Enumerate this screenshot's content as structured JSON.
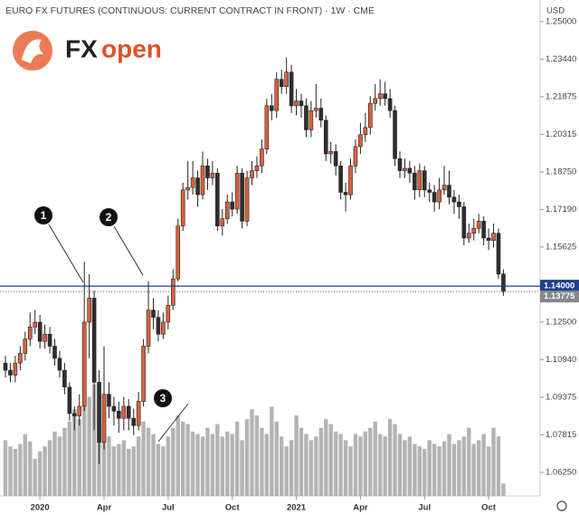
{
  "chart_data": {
    "type": "candlestick",
    "title": "EURO FX FUTURES (CONTINUOUS: CURRENT CONTRACT IN FRONT) · 1W · CME",
    "currency": "USD",
    "logo": {
      "fx": "FX",
      "open": "open"
    },
    "candles": {
      "up_color": "#d9623a",
      "down_color": "#2e2e2e",
      "open": [
        1.108,
        1.105,
        1.103,
        1.108,
        1.112,
        1.118,
        1.123,
        1.125,
        1.117,
        1.12,
        1.115,
        1.11,
        1.105,
        1.098,
        1.087,
        1.086,
        1.09,
        1.125,
        1.135,
        1.1,
        1.075,
        1.095,
        1.09,
        1.088,
        1.085,
        1.09,
        1.085,
        1.082,
        1.092,
        1.115,
        1.13,
        1.127,
        1.12,
        1.125,
        1.132,
        1.143,
        1.165,
        1.18,
        1.181,
        1.185,
        1.178,
        1.19,
        1.185,
        1.187,
        1.165,
        1.168,
        1.175,
        1.172,
        1.187,
        1.167,
        1.185,
        1.188,
        1.19,
        1.197,
        1.215,
        1.213,
        1.226,
        1.223,
        1.229,
        1.215,
        1.217,
        1.215,
        1.205,
        1.213,
        1.214,
        1.209,
        1.195,
        1.196,
        1.19,
        1.179,
        1.178,
        1.19,
        1.198,
        1.203,
        1.206,
        1.216,
        1.218,
        1.22,
        1.218,
        1.213,
        1.193,
        1.188,
        1.189,
        1.187,
        1.18,
        1.188,
        1.18,
        1.179,
        1.175,
        1.18,
        1.182,
        1.177,
        1.175,
        1.173,
        1.16,
        1.162,
        1.164,
        1.167,
        1.16,
        1.159,
        1.162,
        1.145
      ],
      "high": [
        1.111,
        1.108,
        1.111,
        1.115,
        1.121,
        1.129,
        1.13,
        1.128,
        1.124,
        1.123,
        1.118,
        1.113,
        1.108,
        1.1,
        1.09,
        1.095,
        1.15,
        1.145,
        1.138,
        1.105,
        1.115,
        1.1,
        1.094,
        1.092,
        1.094,
        1.093,
        1.089,
        1.096,
        1.118,
        1.142,
        1.135,
        1.13,
        1.129,
        1.136,
        1.147,
        1.168,
        1.183,
        1.192,
        1.192,
        1.188,
        1.196,
        1.193,
        1.192,
        1.189,
        1.172,
        1.178,
        1.179,
        1.19,
        1.189,
        1.188,
        1.192,
        1.194,
        1.201,
        1.218,
        1.22,
        1.229,
        1.23,
        1.235,
        1.232,
        1.222,
        1.22,
        1.218,
        1.217,
        1.224,
        1.218,
        1.211,
        1.2,
        1.199,
        1.192,
        1.183,
        1.193,
        1.201,
        1.208,
        1.212,
        1.219,
        1.224,
        1.226,
        1.225,
        1.222,
        1.215,
        1.196,
        1.193,
        1.192,
        1.19,
        1.191,
        1.19,
        1.183,
        1.182,
        1.185,
        1.19,
        1.188,
        1.18,
        1.178,
        1.175,
        1.166,
        1.168,
        1.17,
        1.169,
        1.164,
        1.166,
        1.164,
        1.147
      ],
      "low": [
        1.102,
        1.1,
        1.1,
        1.105,
        1.109,
        1.115,
        1.12,
        1.114,
        1.114,
        1.112,
        1.107,
        1.102,
        1.095,
        1.084,
        1.08,
        1.082,
        1.088,
        1.11,
        1.08,
        1.066,
        1.072,
        1.085,
        1.082,
        1.079,
        1.08,
        1.08,
        1.078,
        1.08,
        1.09,
        1.112,
        1.122,
        1.117,
        1.118,
        1.122,
        1.13,
        1.142,
        1.163,
        1.176,
        1.178,
        1.173,
        1.176,
        1.18,
        1.182,
        1.163,
        1.161,
        1.166,
        1.169,
        1.17,
        1.164,
        1.165,
        1.182,
        1.185,
        1.187,
        1.195,
        1.209,
        1.21,
        1.22,
        1.22,
        1.212,
        1.211,
        1.21,
        1.202,
        1.202,
        1.21,
        1.206,
        1.192,
        1.191,
        1.186,
        1.176,
        1.171,
        1.176,
        1.187,
        1.195,
        1.2,
        1.203,
        1.213,
        1.215,
        1.215,
        1.21,
        1.19,
        1.185,
        1.185,
        1.183,
        1.176,
        1.177,
        1.177,
        1.175,
        1.171,
        1.172,
        1.178,
        1.174,
        1.17,
        1.168,
        1.157,
        1.158,
        1.159,
        1.162,
        1.157,
        1.155,
        1.156,
        1.143,
        1.136
      ],
      "close": [
        1.105,
        1.103,
        1.108,
        1.112,
        1.118,
        1.123,
        1.125,
        1.117,
        1.12,
        1.115,
        1.11,
        1.105,
        1.098,
        1.087,
        1.086,
        1.09,
        1.125,
        1.135,
        1.1,
        1.075,
        1.095,
        1.09,
        1.088,
        1.085,
        1.09,
        1.085,
        1.082,
        1.092,
        1.115,
        1.13,
        1.127,
        1.12,
        1.125,
        1.132,
        1.143,
        1.165,
        1.18,
        1.181,
        1.185,
        1.178,
        1.19,
        1.185,
        1.187,
        1.165,
        1.168,
        1.175,
        1.172,
        1.187,
        1.167,
        1.185,
        1.188,
        1.19,
        1.197,
        1.215,
        1.213,
        1.226,
        1.223,
        1.229,
        1.215,
        1.217,
        1.215,
        1.205,
        1.213,
        1.214,
        1.209,
        1.195,
        1.196,
        1.19,
        1.179,
        1.178,
        1.19,
        1.198,
        1.203,
        1.206,
        1.216,
        1.218,
        1.22,
        1.218,
        1.213,
        1.193,
        1.188,
        1.189,
        1.187,
        1.18,
        1.188,
        1.18,
        1.179,
        1.175,
        1.18,
        1.182,
        1.177,
        1.175,
        1.173,
        1.16,
        1.162,
        1.164,
        1.167,
        1.16,
        1.159,
        1.162,
        1.145,
        1.1378
      ]
    },
    "volume": {
      "color": "#b3b3b3",
      "vlim": [
        0,
        400
      ],
      "values": [
        45,
        40,
        38,
        42,
        50,
        44,
        30,
        36,
        40,
        45,
        52,
        48,
        55,
        60,
        70,
        62,
        85,
        80,
        90,
        65,
        55,
        48,
        40,
        42,
        45,
        38,
        40,
        48,
        60,
        55,
        50,
        42,
        40,
        48,
        55,
        65,
        60,
        58,
        52,
        50,
        48,
        55,
        50,
        58,
        48,
        52,
        50,
        60,
        45,
        62,
        70,
        65,
        55,
        50,
        72,
        60,
        48,
        40,
        45,
        65,
        55,
        50,
        45,
        48,
        55,
        62,
        58,
        52,
        50,
        45,
        40,
        50,
        48,
        52,
        55,
        60,
        50,
        48,
        62,
        58,
        50,
        45,
        48,
        42,
        40,
        38,
        45,
        42,
        40,
        44,
        50,
        42,
        45,
        48,
        55,
        42,
        45,
        50,
        40,
        55,
        48,
        10
      ]
    },
    "ylim": [
      1.0527,
      1.259
    ],
    "yticks": [
      {
        "value": 1.25,
        "label": "1.25000"
      },
      {
        "value": 1.2344,
        "label": "1.23440"
      },
      {
        "value": 1.21875,
        "label": "1.21875"
      },
      {
        "value": 1.20315,
        "label": "1.20315"
      },
      {
        "value": 1.1875,
        "label": "1.18750"
      },
      {
        "value": 1.1719,
        "label": "1.17190"
      },
      {
        "value": 1.15625,
        "label": "1.15625"
      },
      {
        "value": 1.125,
        "label": "1.12500"
      },
      {
        "value": 1.1094,
        "label": "1.10940"
      },
      {
        "value": 1.09375,
        "label": "1.09375"
      },
      {
        "value": 1.07815,
        "label": "1.07815"
      },
      {
        "value": 1.0625,
        "label": "1.06250"
      }
    ],
    "xticks": [
      {
        "value": 7,
        "label": "2020"
      },
      {
        "value": 20,
        "label": "Apr"
      },
      {
        "value": 33,
        "label": "Jul"
      },
      {
        "value": 46,
        "label": "Oct"
      },
      {
        "value": 59,
        "label": "2021"
      },
      {
        "value": 72,
        "label": "Apr"
      },
      {
        "value": 85,
        "label": "Jul"
      },
      {
        "value": 98,
        "label": "Oct"
      }
    ],
    "level": {
      "value": 1.14,
      "label": "1.14000",
      "color": "#1f3f8f"
    },
    "last_price": {
      "value": 1.13775,
      "label": "1.13775"
    },
    "annotations": [
      "1",
      "2",
      "3"
    ]
  }
}
